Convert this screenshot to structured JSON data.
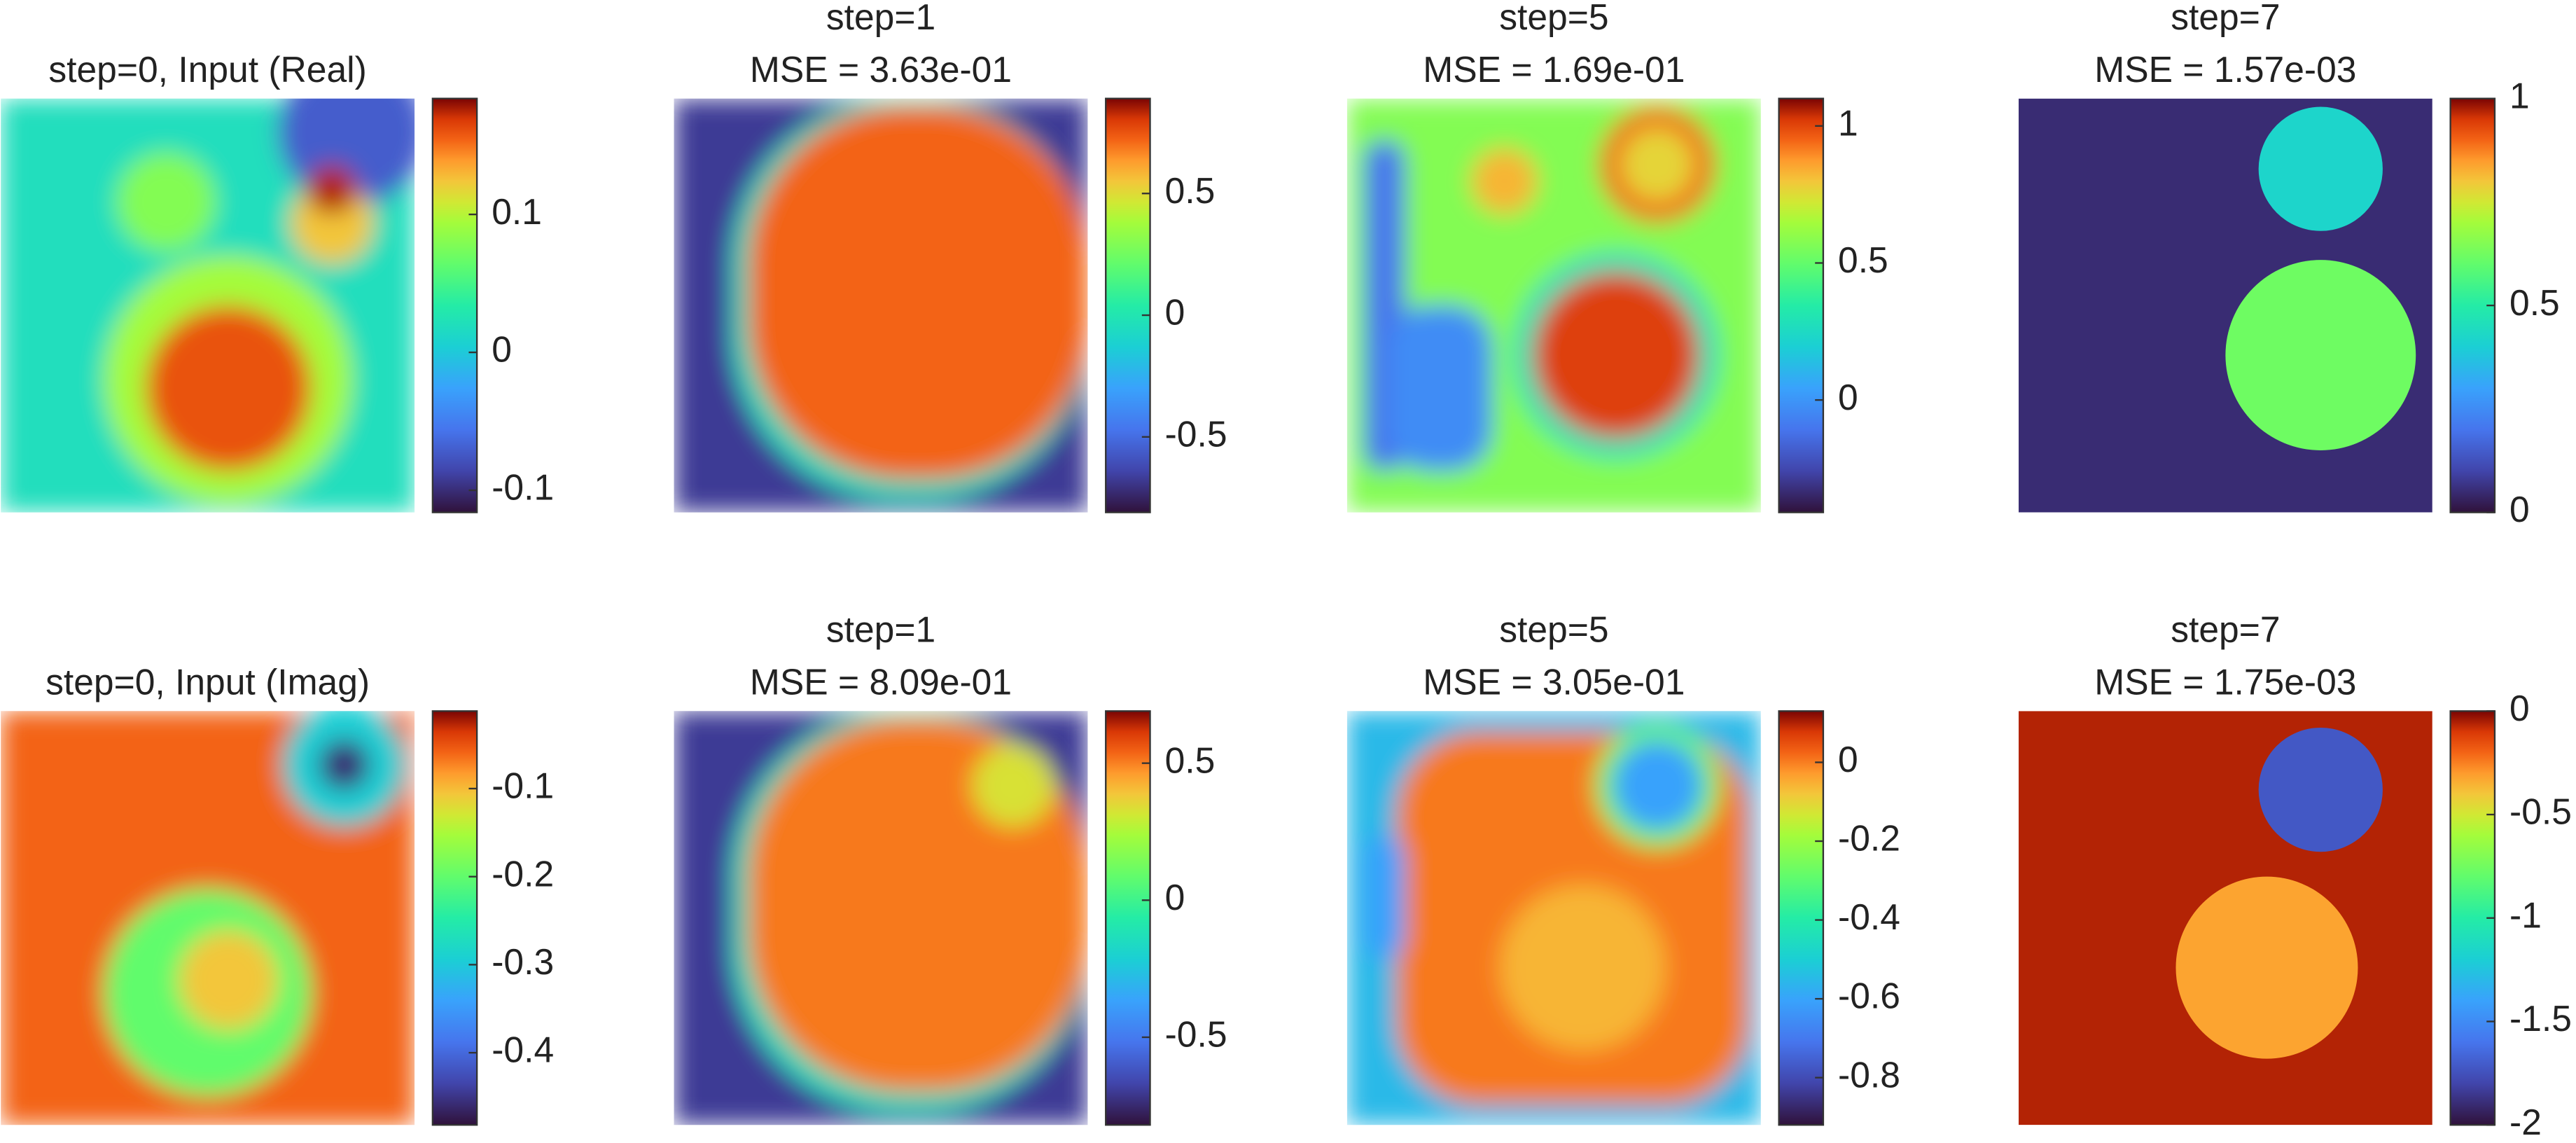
{
  "chart_data": [
    {
      "type": "heatmap",
      "title": "step=0, Input (Real)",
      "clim": [
        -0.116,
        0.184
      ],
      "cticks": [
        -0.1,
        0,
        0.1
      ]
    },
    {
      "type": "heatmap",
      "title": "step=1",
      "subtitle": "MSE = 3.63e-01",
      "clim": [
        -0.81,
        0.89
      ],
      "cticks": [
        -0.5,
        0,
        0.5
      ]
    },
    {
      "type": "heatmap",
      "title": "step=5",
      "subtitle": "MSE = 1.69e-01",
      "clim": [
        -0.41,
        1.1
      ],
      "cticks": [
        0,
        0.5,
        1
      ]
    },
    {
      "type": "heatmap",
      "title": "step=7",
      "subtitle": "MSE = 1.57e-03",
      "clim": [
        0,
        1
      ],
      "cticks": [
        0,
        0.5,
        1
      ]
    },
    {
      "type": "heatmap",
      "title": "step=0, Input (Imag)",
      "clim": [
        -0.482,
        -0.012
      ],
      "cticks": [
        -0.4,
        -0.3,
        -0.2,
        -0.1
      ]
    },
    {
      "type": "heatmap",
      "title": "step=1",
      "subtitle": "MSE = 8.09e-01",
      "clim": [
        -0.82,
        0.69
      ],
      "cticks": [
        -0.5,
        0,
        0.5
      ]
    },
    {
      "type": "heatmap",
      "title": "step=5",
      "subtitle": "MSE = 3.05e-01",
      "clim": [
        -0.92,
        0.13
      ],
      "cticks": [
        -0.8,
        -0.6,
        -0.4,
        -0.2,
        0
      ]
    },
    {
      "type": "heatmap",
      "title": "step=7",
      "subtitle": "MSE = 1.75e-03",
      "clim": [
        -2,
        0
      ],
      "cticks": [
        -2,
        -1.5,
        -1,
        -0.5,
        0
      ]
    }
  ]
}
